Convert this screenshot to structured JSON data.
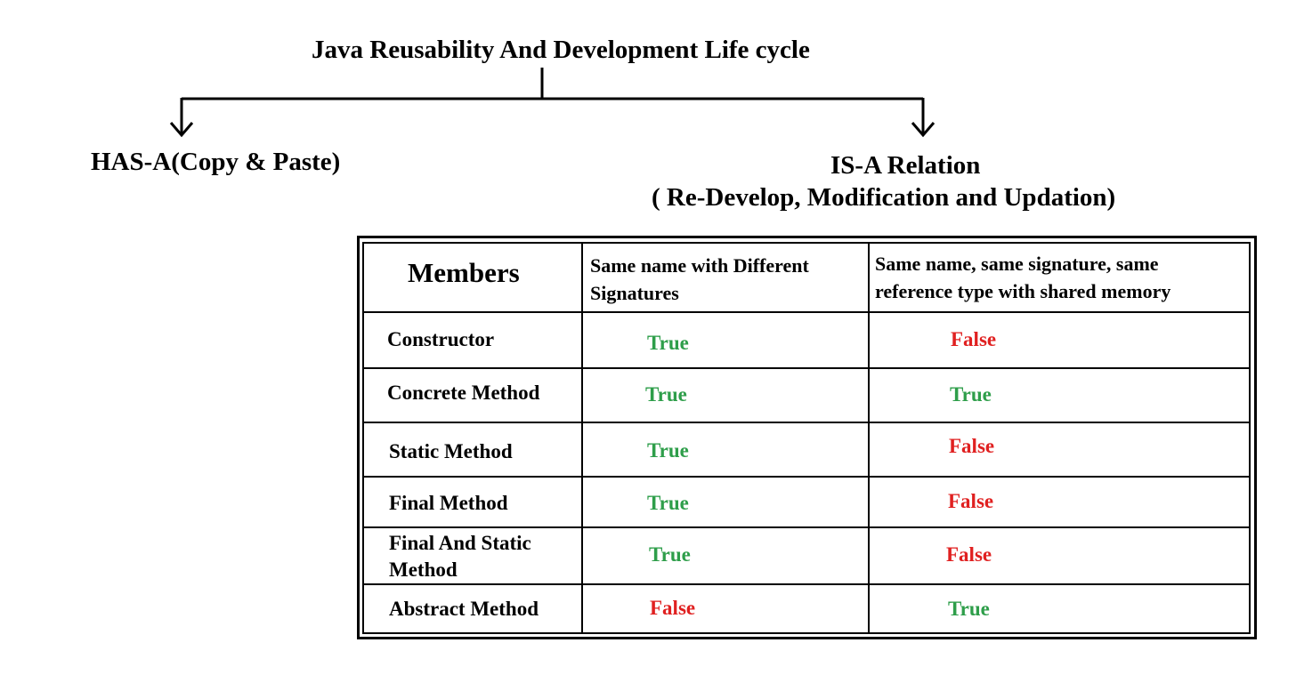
{
  "title": "Java Reusability And Development Life cycle",
  "left_branch": {
    "label": "HAS-A(Copy & Paste)"
  },
  "right_branch": {
    "label_line1": "IS-A Relation",
    "label_line2": "( Re-Develop, Modification and Updation)"
  },
  "colors": {
    "true": "#2e9e4a",
    "false": "#e02020"
  },
  "table": {
    "headers": {
      "members": "Members",
      "col1_line1": "Same name with Different",
      "col1_line2": "Signatures",
      "col2_line1": "Same name, same signature, same",
      "col2_line2": "reference type  with shared memory"
    },
    "rows": [
      {
        "member_line1": "Constructor",
        "member_line2": "",
        "col1": "True",
        "col2": "False"
      },
      {
        "member_line1": "Concrete Method",
        "member_line2": "",
        "col1": "True",
        "col2": "True"
      },
      {
        "member_line1": "Static Method",
        "member_line2": "",
        "col1": "True",
        "col2": "False"
      },
      {
        "member_line1": "Final Method",
        "member_line2": "",
        "col1": "True",
        "col2": "False"
      },
      {
        "member_line1": "Final And Static",
        "member_line2": "Method",
        "col1": "True",
        "col2": "False"
      },
      {
        "member_line1": "Abstract Method",
        "member_line2": "",
        "col1": "False",
        "col2": "True"
      }
    ]
  }
}
